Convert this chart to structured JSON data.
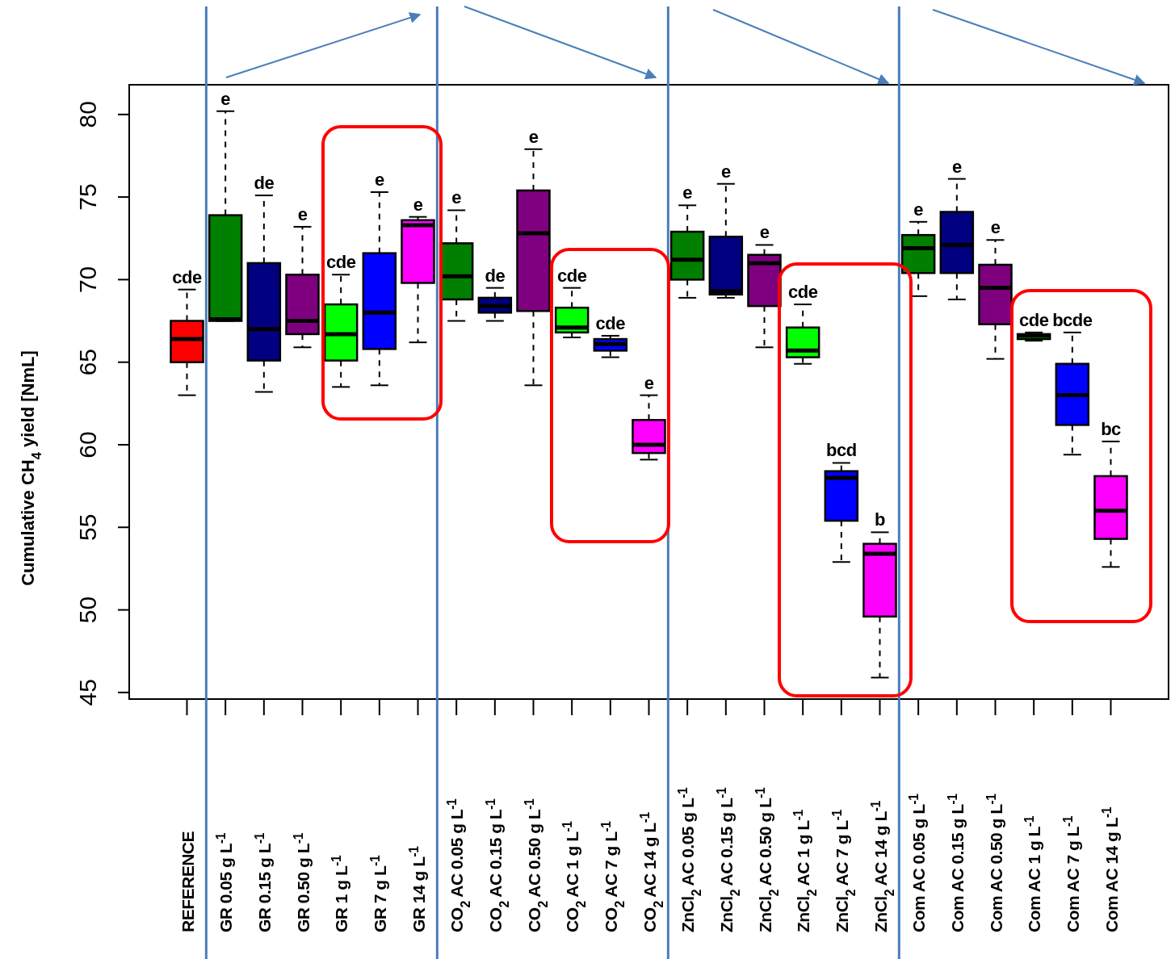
{
  "chart_data": {
    "type": "box",
    "ylabel": "Cumulative CH$_{4}$ yield [NmL]",
    "categories": [
      "REFERENCE",
      "GR 0.05 g L$^{-1}$",
      "GR 0.15 g L$^{-1}$",
      "GR 0.50 g L$^{-1}$",
      "GR 1 g L$^{-1}$",
      "GR 7 g L$^{-1}$",
      "GR 14 g L$^{-1}$",
      "CO$_{2}$ AC 0.05 g L$^{-1}$",
      "CO$_{2}$ AC 0.15 g L$^{-1}$",
      "CO$_{2}$ AC 0.50 g L$^{-1}$",
      "CO$_{2}$ AC 1 g L$^{-1}$",
      "CO$_{2}$ AC 7 g L$^{-1}$",
      "CO$_{2}$ AC 14 g L$^{-1}$",
      "ZnCl$_{2}$ AC 0.05 g L$^{-1}$",
      "ZnCl$_{2}$ AC 0.15 g L$^{-1}$",
      "ZnCl$_{2}$ AC 0.50 g L$^{-1}$",
      "ZnCl$_{2}$ AC 1 g L$^{-1}$",
      "ZnCl$_{2}$ AC 7 g L$^{-1}$",
      "ZnCl$_{2}$ AC 14 g L$^{-1}$",
      "Com AC 0.05 g L$^{-1}$",
      "Com AC 0.15 g L$^{-1}$",
      "Com AC 0.50 g L$^{-1}$",
      "Com AC 1 g L$^{-1}$",
      "Com AC 7 g L$^{-1}$",
      "Com AC 14 g L$^{-1}$"
    ],
    "colors": [
      "#ff0000",
      "#007f00",
      "#000080",
      "#7f007f",
      "#00ff00",
      "#0000ff",
      "#ff00ff",
      "#007f00",
      "#000080",
      "#7f007f",
      "#00ff00",
      "#0000ff",
      "#ff00ff",
      "#007f00",
      "#000080",
      "#7f007f",
      "#00ff00",
      "#0000ff",
      "#ff00ff",
      "#007f00",
      "#000080",
      "#7f007f",
      "#00ff00",
      "#0000ff",
      "#ff00ff"
    ],
    "boxes": [
      {
        "low": 63.0,
        "q1": 65.0,
        "median": 66.4,
        "q3": 67.5,
        "high": 69.4
      },
      {
        "low": 67.5,
        "q1": 67.5,
        "median": 67.6,
        "q3": 73.9,
        "high": 80.2
      },
      {
        "low": 63.2,
        "q1": 65.1,
        "median": 67.0,
        "q3": 71.0,
        "high": 75.1
      },
      {
        "low": 65.9,
        "q1": 66.7,
        "median": 67.5,
        "q3": 70.3,
        "high": 73.2
      },
      {
        "low": 63.5,
        "q1": 65.1,
        "median": 66.7,
        "q3": 68.5,
        "high": 70.3
      },
      {
        "low": 63.6,
        "q1": 65.8,
        "median": 68.0,
        "q3": 71.6,
        "high": 75.3
      },
      {
        "low": 66.2,
        "q1": 69.8,
        "median": 73.3,
        "q3": 73.6,
        "high": 73.8
      },
      {
        "low": 67.5,
        "q1": 68.8,
        "median": 70.2,
        "q3": 72.2,
        "high": 74.2
      },
      {
        "low": 67.5,
        "q1": 68.0,
        "median": 68.4,
        "q3": 68.9,
        "high": 69.5
      },
      {
        "low": 63.6,
        "q1": 68.1,
        "median": 72.8,
        "q3": 75.4,
        "high": 77.9
      },
      {
        "low": 66.5,
        "q1": 66.8,
        "median": 67.1,
        "q3": 68.3,
        "high": 69.5
      },
      {
        "low": 65.3,
        "q1": 65.7,
        "median": 66.1,
        "q3": 66.4,
        "high": 66.6
      },
      {
        "low": 59.1,
        "q1": 59.5,
        "median": 60.0,
        "q3": 61.5,
        "high": 63.0
      },
      {
        "low": 68.9,
        "q1": 70.0,
        "median": 71.2,
        "q3": 72.9,
        "high": 74.5
      },
      {
        "low": 68.9,
        "q1": 69.1,
        "median": 69.3,
        "q3": 72.6,
        "high": 75.8
      },
      {
        "low": 65.9,
        "q1": 68.4,
        "median": 71.0,
        "q3": 71.5,
        "high": 72.1
      },
      {
        "low": 64.9,
        "q1": 65.3,
        "median": 65.7,
        "q3": 67.1,
        "high": 68.5
      },
      {
        "low": 52.9,
        "q1": 55.4,
        "median": 58.0,
        "q3": 58.4,
        "high": 58.9
      },
      {
        "low": 45.9,
        "q1": 49.6,
        "median": 53.4,
        "q3": 54.0,
        "high": 54.7
      },
      {
        "low": 69.0,
        "q1": 70.4,
        "median": 71.9,
        "q3": 72.7,
        "high": 73.5
      },
      {
        "low": 68.8,
        "q1": 70.4,
        "median": 72.1,
        "q3": 74.1,
        "high": 76.1
      },
      {
        "low": 65.2,
        "q1": 67.3,
        "median": 69.5,
        "q3": 70.9,
        "high": 72.4
      },
      {
        "low": 66.3,
        "q1": 66.4,
        "median": 66.6,
        "q3": 66.7,
        "high": 66.8
      },
      {
        "low": 59.4,
        "q1": 61.2,
        "median": 63.0,
        "q3": 64.9,
        "high": 66.8
      },
      {
        "low": 52.6,
        "q1": 54.3,
        "median": 56.0,
        "q3": 58.1,
        "high": 60.2
      }
    ],
    "ylim": [
      44.6,
      81.8
    ],
    "yticks": [
      45,
      50,
      55,
      60,
      65,
      70,
      75,
      80
    ],
    "annotations": [
      {
        "text": "cde",
        "x": "REFERENCE",
        "y": 69.4
      },
      {
        "text": "e",
        "x": "GR 0.05 g L$^{-1}$",
        "y": 80.2
      },
      {
        "text": "de",
        "x": "GR 0.15 g L$^{-1}$",
        "y": 75.1
      },
      {
        "text": "e",
        "x": "GR 0.50 g L$^{-1}$",
        "y": 73.2
      },
      {
        "text": "cde",
        "x": "GR 1 g L$^{-1}$",
        "y": 70.3
      },
      {
        "text": "e",
        "x": "GR 7 g L$^{-1}$",
        "y": 75.3
      },
      {
        "text": "e",
        "x": "GR 14 g L$^{-1}$",
        "y": 73.8
      },
      {
        "text": "e",
        "x": "CO$_{2}$ AC 0.05 g L$^{-1}$",
        "y": 74.2
      },
      {
        "text": "de",
        "x": "CO$_{2}$ AC 0.15 g L$^{-1}$",
        "y": 69.5
      },
      {
        "text": "e",
        "x": "CO$_{2}$ AC 0.50 g L$^{-1}$",
        "y": 77.9
      },
      {
        "text": "cde",
        "x": "CO$_{2}$ AC 1 g L$^{-1}$",
        "y": 69.5
      },
      {
        "text": "cde",
        "x": "CO$_{2}$ AC 7 g L$^{-1}$",
        "y": 66.6
      },
      {
        "text": "e",
        "x": "CO$_{2}$ AC 14 g L$^{-1}$",
        "y": 63.0
      },
      {
        "text": "e",
        "x": "ZnCl$_{2}$ AC 0.05 g L$^{-1}$",
        "y": 74.5
      },
      {
        "text": "e",
        "x": "ZnCl$_{2}$ AC 0.15 g L$^{-1}$",
        "y": 75.8
      },
      {
        "text": "e",
        "x": "ZnCl$_{2}$ AC 0.50 g L$^{-1}$",
        "y": 72.1
      },
      {
        "text": "cde",
        "x": "ZnCl$_{2}$ AC 1 g L$^{-1}$",
        "y": 68.5
      },
      {
        "text": "bcd",
        "x": "ZnCl$_{2}$ AC 7 g L$^{-1}$",
        "y": 58.9
      },
      {
        "text": "b",
        "x": "ZnCl$_{2}$ AC 14 g L$^{-1}$",
        "y": 54.7
      },
      {
        "text": "e",
        "x": "Com AC 0.05 g L$^{-1}$",
        "y": 73.5
      },
      {
        "text": "e",
        "x": "Com AC 0.15 g L$^{-1}$",
        "y": 76.1
      },
      {
        "text": "e",
        "x": "Com AC 0.50 g L$^{-1}$",
        "y": 72.4
      },
      {
        "text": "cde",
        "x": "Com AC 1 g L$^{-1}$",
        "y": 66.8
      },
      {
        "text": "bcde",
        "x": "Com AC 7 g L$^{-1}$",
        "y": 66.8
      },
      {
        "text": "bc",
        "x": "Com AC 14 g L$^{-1}$",
        "y": 60.2
      }
    ],
    "grid": false
  }
}
